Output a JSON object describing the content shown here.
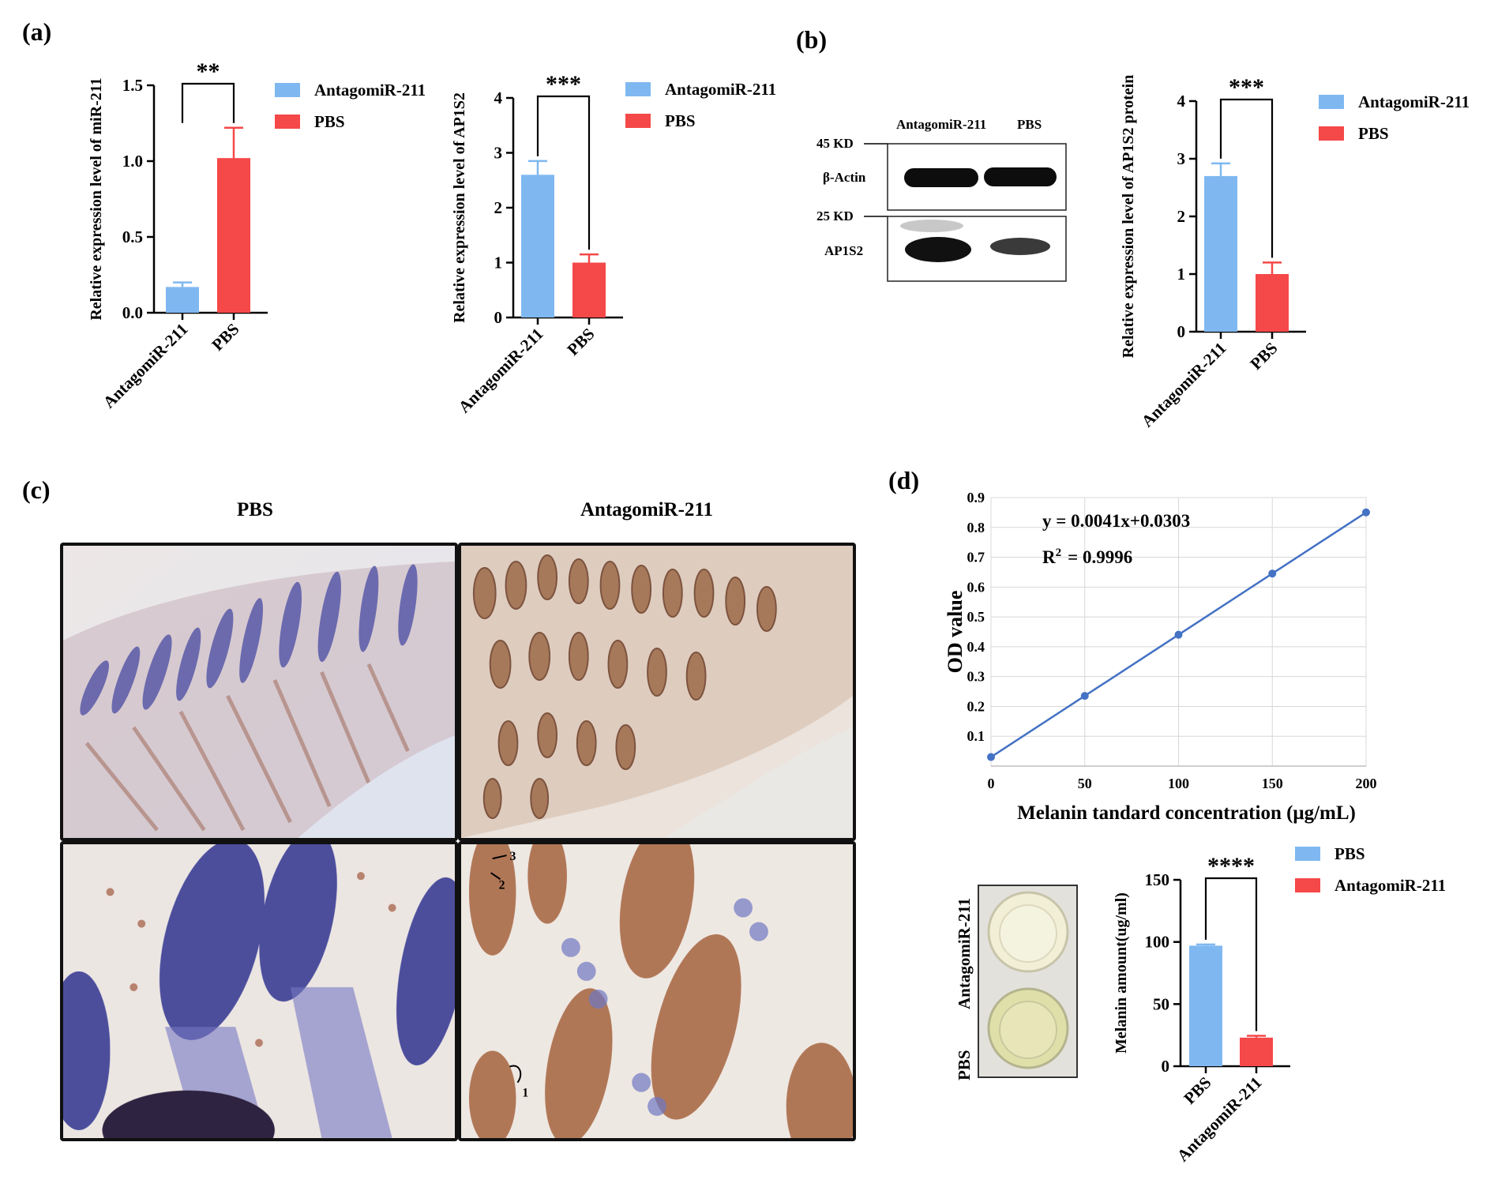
{
  "panels": {
    "a": "(a)",
    "b": "(b)",
    "c": "(c)",
    "d": "(d)"
  },
  "colors": {
    "antagomir": "#7fb8f0",
    "pbs": "#f54848",
    "line": "#4472c4"
  },
  "charts": [
    {
      "id": "a1",
      "chart_data": {
        "type": "bar",
        "categories": [
          "AntagomiR-211",
          "PBS"
        ],
        "values": [
          0.17,
          1.02
        ],
        "errors": [
          0.03,
          0.2
        ],
        "ylabel": "Relative expression level of miR-211",
        "ylim": [
          0,
          1.5
        ],
        "yticks": [
          0.0,
          0.5,
          1.0,
          1.5
        ],
        "ytick_labels": [
          "0.0",
          "0.5",
          "1.0",
          "1.5"
        ],
        "significance": "**",
        "legend": [
          {
            "label": "AntagomiR-211",
            "color": "#7fb8f0"
          },
          {
            "label": "PBS",
            "color": "#f54848"
          }
        ],
        "bar_colors": [
          "#7fb8f0",
          "#f54848"
        ]
      }
    },
    {
      "id": "a2",
      "chart_data": {
        "type": "bar",
        "categories": [
          "AntagomiR-211",
          "PBS"
        ],
        "values": [
          2.6,
          1.0
        ],
        "errors": [
          0.25,
          0.15
        ],
        "ylabel": "Relative expression level of AP1S2",
        "ylim": [
          0,
          4
        ],
        "yticks": [
          0,
          1,
          2,
          3,
          4
        ],
        "ytick_labels": [
          "0",
          "1",
          "2",
          "3",
          "4"
        ],
        "significance": "***",
        "legend": [
          {
            "label": "AntagomiR-211",
            "color": "#7fb8f0"
          },
          {
            "label": "PBS",
            "color": "#f54848"
          }
        ],
        "bar_colors": [
          "#7fb8f0",
          "#f54848"
        ]
      }
    },
    {
      "id": "b",
      "chart_data": {
        "type": "bar",
        "categories": [
          "AntagomiR-211",
          "PBS"
        ],
        "values": [
          2.7,
          1.0
        ],
        "errors": [
          0.22,
          0.2
        ],
        "ylabel": "Relative expression level of AP1S2 protein",
        "ylim": [
          0,
          4
        ],
        "yticks": [
          0,
          1,
          2,
          3,
          4
        ],
        "ytick_labels": [
          "0",
          "1",
          "2",
          "3",
          "4"
        ],
        "significance": "***",
        "legend": [
          {
            "label": "AntagomiR-211",
            "color": "#7fb8f0"
          },
          {
            "label": "PBS",
            "color": "#f54848"
          }
        ],
        "bar_colors": [
          "#7fb8f0",
          "#f54848"
        ]
      }
    },
    {
      "id": "d2",
      "chart_data": {
        "type": "bar",
        "categories": [
          "PBS",
          "AntagomiR-211"
        ],
        "values": [
          97,
          23
        ],
        "errors": [
          1,
          1.5
        ],
        "ylabel": "Melanin amount(ug/ml)",
        "ylim": [
          0,
          150
        ],
        "yticks": [
          0,
          50,
          100,
          150
        ],
        "ytick_labels": [
          "0",
          "50",
          "100",
          "150"
        ],
        "significance": "****",
        "legend": [
          {
            "label": "PBS",
            "color": "#7fb8f0"
          },
          {
            "label": "AntagomiR-211",
            "color": "#f54848"
          }
        ],
        "bar_colors": [
          "#7fb8f0",
          "#f54848"
        ]
      }
    }
  ],
  "standard_curve": {
    "chart_data": {
      "type": "line",
      "x": [
        0,
        50,
        100,
        150,
        200
      ],
      "y": [
        0.0303,
        0.2353,
        0.4403,
        0.6453,
        0.8503
      ],
      "xticks": [
        0,
        50,
        100,
        150,
        200
      ],
      "xtick_labels": [
        "0",
        "50",
        "100",
        "150",
        "200"
      ],
      "yticks": [
        0.1,
        0.2,
        0.3,
        0.4,
        0.5,
        0.6,
        0.7,
        0.8,
        0.9
      ],
      "ytick_labels": [
        "0.1",
        "0.2",
        "0.3",
        "0.4",
        "0.5",
        "0.6",
        "0.7",
        "0.8",
        "0.9"
      ],
      "xlim": [
        0,
        200
      ],
      "ylim": [
        0,
        0.9
      ],
      "grid": true,
      "ylabel": "OD value",
      "xlabel": "Melanin   tandard concentration (μg/mL)",
      "equation": "y = 0.0041x+0.0303",
      "r2_prefix": "R",
      "r2_sup": "2",
      "r2_value": "= 0.9996"
    }
  },
  "western": {
    "lane_labels": [
      "AntagomiR-211",
      "PBS"
    ],
    "markers": [
      "45 KD",
      "25 KD"
    ],
    "rows": [
      "β-Actin",
      "AP1S2"
    ]
  },
  "histology": {
    "conditions": [
      "PBS",
      "AntagomiR-211"
    ],
    "arrow_labels": [
      "3",
      "2",
      "1"
    ]
  },
  "wells": {
    "labels": [
      "AntagomiR-211",
      "PBS"
    ]
  }
}
